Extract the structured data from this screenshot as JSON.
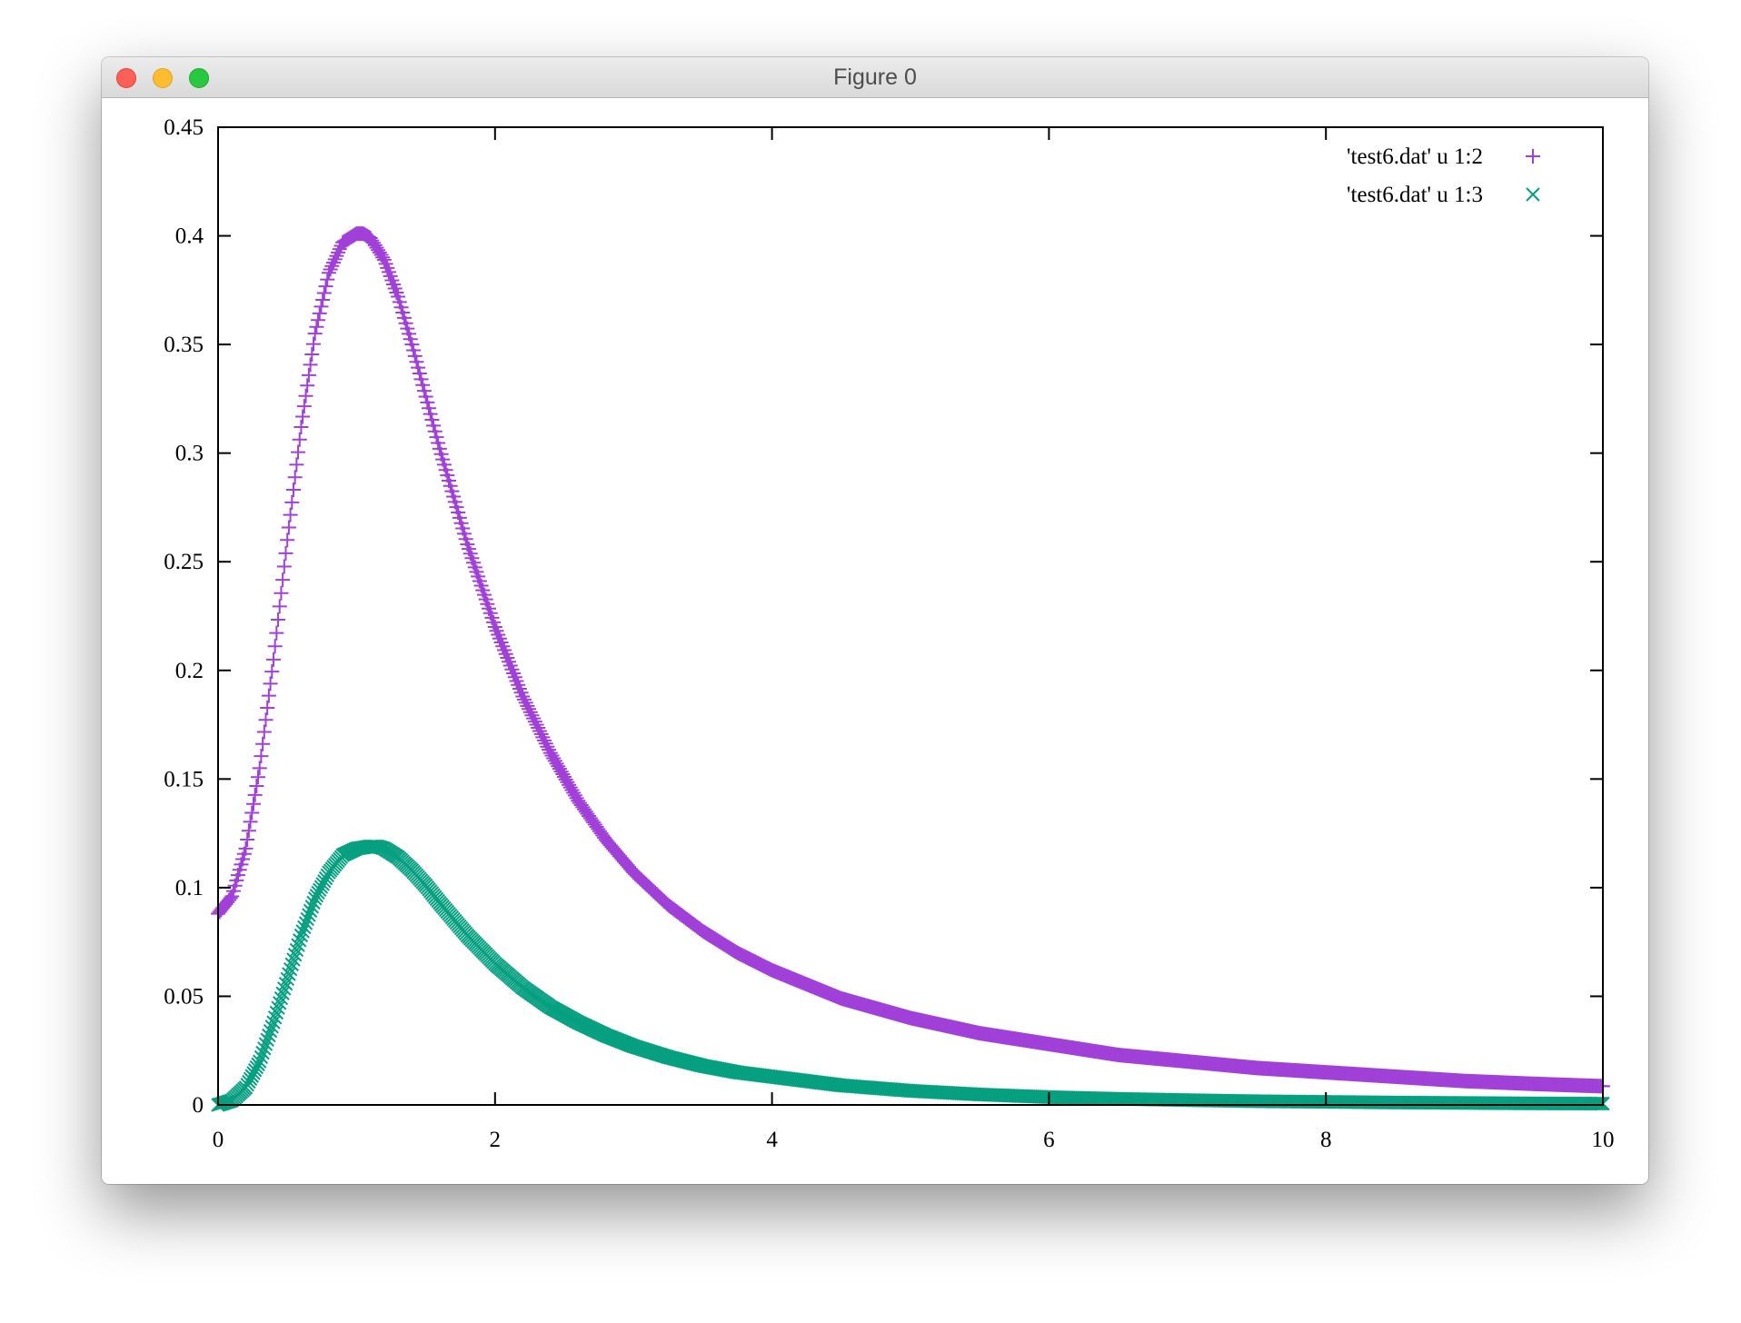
{
  "window": {
    "title": "Figure 0"
  },
  "chart_data": {
    "type": "scatter",
    "title": "",
    "xlabel": "",
    "ylabel": "",
    "xlim": [
      0,
      10
    ],
    "ylim": [
      0,
      0.45
    ],
    "x_ticks": [
      0,
      2,
      4,
      6,
      8,
      10
    ],
    "x_tick_labels": [
      "0",
      "2",
      "4",
      "6",
      "8",
      "10"
    ],
    "y_ticks": [
      0,
      0.05,
      0.1,
      0.15,
      0.2,
      0.25,
      0.3,
      0.35,
      0.4,
      0.45
    ],
    "y_tick_labels": [
      "0",
      "0.05",
      "0.1",
      "0.15",
      "0.2",
      "0.25",
      "0.3",
      "0.35",
      "0.4",
      "0.45"
    ],
    "grid": false,
    "legend_position": "top-right",
    "series": [
      {
        "name": "'test6.dat' u 1:2",
        "marker": "plus",
        "color": "#a040d8",
        "x": [
          0,
          0.1,
          0.2,
          0.3,
          0.4,
          0.5,
          0.6,
          0.7,
          0.8,
          0.9,
          1.0,
          1.05,
          1.1,
          1.2,
          1.3,
          1.4,
          1.5,
          1.6,
          1.8,
          2.0,
          2.2,
          2.4,
          2.6,
          2.8,
          3.0,
          3.25,
          3.5,
          3.75,
          4.0,
          4.5,
          5.0,
          5.5,
          6.0,
          6.5,
          7.0,
          7.5,
          8.0,
          8.5,
          9.0,
          9.5,
          10.0
        ],
        "y": [
          0.088,
          0.096,
          0.118,
          0.155,
          0.205,
          0.26,
          0.312,
          0.355,
          0.383,
          0.397,
          0.401,
          0.401,
          0.399,
          0.389,
          0.372,
          0.35,
          0.326,
          0.302,
          0.258,
          0.22,
          0.188,
          0.162,
          0.14,
          0.122,
          0.107,
          0.092,
          0.08,
          0.07,
          0.062,
          0.049,
          0.04,
          0.033,
          0.028,
          0.023,
          0.02,
          0.017,
          0.015,
          0.013,
          0.011,
          0.0097,
          0.0086
        ]
      },
      {
        "name": "'test6.dat' u 1:3",
        "marker": "cross",
        "color": "#06a080",
        "x": [
          0,
          0.1,
          0.2,
          0.3,
          0.4,
          0.5,
          0.6,
          0.7,
          0.8,
          0.9,
          1.0,
          1.1,
          1.15,
          1.2,
          1.3,
          1.4,
          1.5,
          1.6,
          1.8,
          2.0,
          2.2,
          2.4,
          2.6,
          2.8,
          3.0,
          3.25,
          3.5,
          3.75,
          4.0,
          4.5,
          5.0,
          5.5,
          6.0,
          6.5,
          7.0,
          7.5,
          8.0,
          8.5,
          9.0,
          9.5,
          10.0
        ],
        "y": [
          0.0,
          0.002,
          0.008,
          0.02,
          0.038,
          0.058,
          0.078,
          0.095,
          0.107,
          0.115,
          0.118,
          0.119,
          0.119,
          0.118,
          0.114,
          0.108,
          0.101,
          0.093,
          0.078,
          0.065,
          0.054,
          0.045,
          0.038,
          0.032,
          0.027,
          0.022,
          0.018,
          0.015,
          0.013,
          0.009,
          0.0065,
          0.0048,
          0.0036,
          0.0028,
          0.0022,
          0.0017,
          0.0014,
          0.0011,
          0.0009,
          0.0007,
          0.0006
        ]
      }
    ]
  }
}
